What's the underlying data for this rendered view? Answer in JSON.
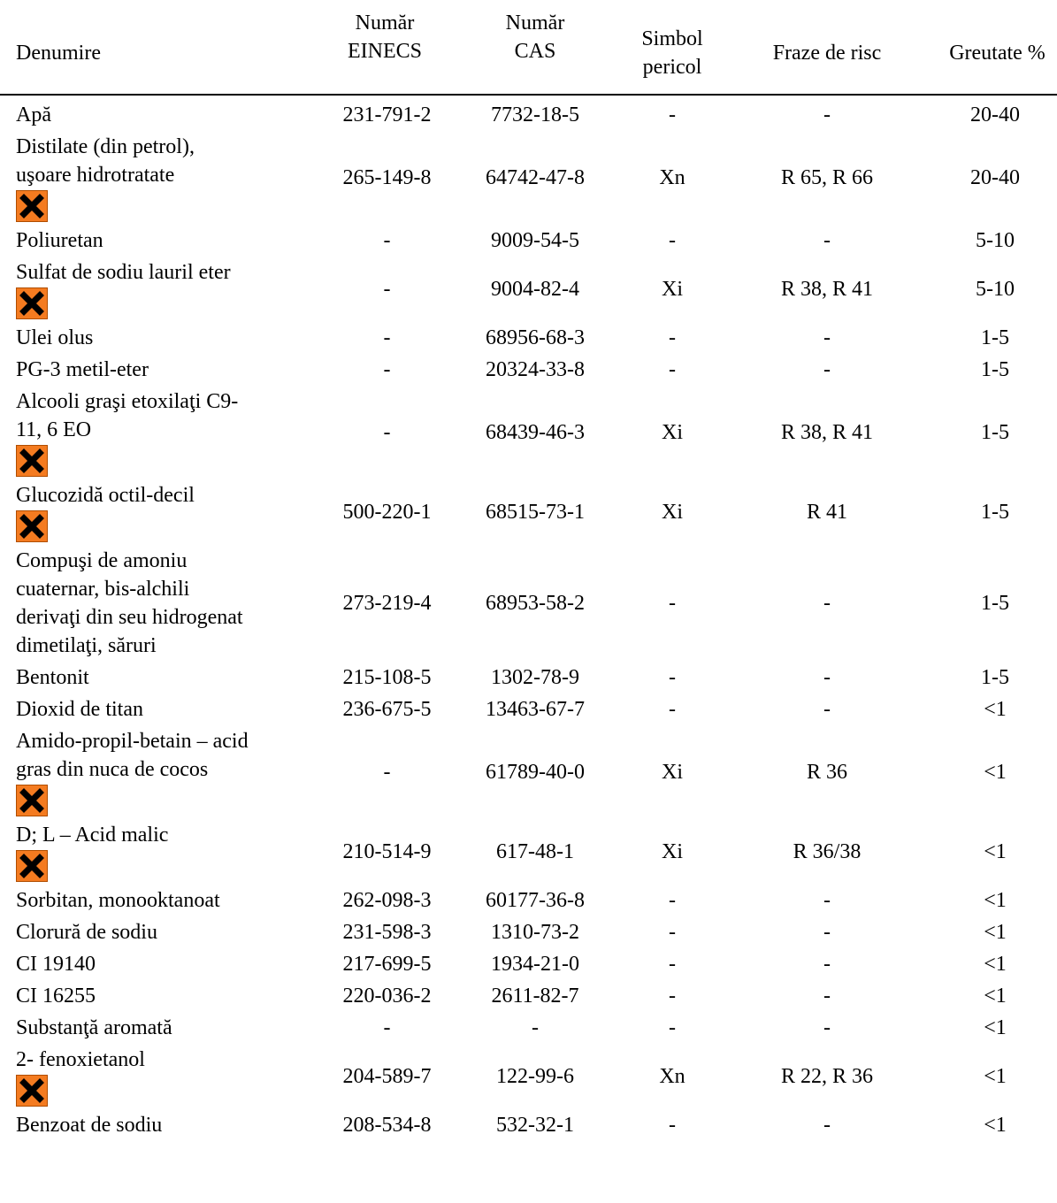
{
  "headers": {
    "denumire": "Denumire",
    "einecs": [
      "Număr",
      "EINECS"
    ],
    "cas": [
      "Număr",
      "CAS"
    ],
    "simbol": [
      "Simbol",
      "pericol"
    ],
    "fraze": "Fraze de risc",
    "greutate": "Greutate %"
  },
  "rows": [
    {
      "name": [
        "Apă"
      ],
      "einecs": "231-791-2",
      "cas": "7732-18-5",
      "simbol": "-",
      "fraze": "-",
      "greutate": "20-40",
      "hazard": false
    },
    {
      "name": [
        "Distilate (din petrol),",
        "uşoare hidrotratate"
      ],
      "einecs": "265-149-8",
      "cas": "64742-47-8",
      "simbol": "Xn",
      "fraze": "R 65, R 66",
      "greutate": "20-40",
      "hazard": true
    },
    {
      "name": [
        "Poliuretan"
      ],
      "einecs": "-",
      "cas": "9009-54-5",
      "simbol": "-",
      "fraze": "-",
      "greutate": "5-10",
      "hazard": false
    },
    {
      "name": [
        "Sulfat de sodiu lauril eter"
      ],
      "einecs": "-",
      "cas": "9004-82-4",
      "simbol": "Xi",
      "fraze": "R 38, R 41",
      "greutate": "5-10",
      "hazard": true
    },
    {
      "name": [
        "Ulei olus"
      ],
      "einecs": "-",
      "cas": "68956-68-3",
      "simbol": "-",
      "fraze": "-",
      "greutate": "1-5",
      "hazard": false
    },
    {
      "name": [
        "PG-3 metil-eter"
      ],
      "einecs": "-",
      "cas": "20324-33-8",
      "simbol": "-",
      "fraze": "-",
      "greutate": "1-5",
      "hazard": false
    },
    {
      "name": [
        "Alcooli graşi etoxilaţi C9-",
        "11, 6 EO"
      ],
      "einecs": "-",
      "cas": "68439-46-3",
      "simbol": "Xi",
      "fraze": "R 38, R 41",
      "greutate": "1-5",
      "hazard": true
    },
    {
      "name": [
        "Glucozidă octil-decil"
      ],
      "einecs": "500-220-1",
      "cas": "68515-73-1",
      "simbol": "Xi",
      "fraze": "R 41",
      "greutate": "1-5",
      "hazard": true
    },
    {
      "name": [
        "Compuşi de amoniu",
        "cuaternar, bis-alchili",
        "derivaţi din seu hidrogenat",
        "dimetilaţi, săruri"
      ],
      "einecs": "273-219-4",
      "cas": "68953-58-2",
      "simbol": "-",
      "fraze": "-",
      "greutate": "1-5",
      "hazard": false
    },
    {
      "name": [
        "Bentonit"
      ],
      "einecs": "215-108-5",
      "cas": "1302-78-9",
      "simbol": "-",
      "fraze": "-",
      "greutate": "1-5",
      "hazard": false
    },
    {
      "name": [
        "Dioxid de titan"
      ],
      "einecs": "236-675-5",
      "cas": "13463-67-7",
      "simbol": "-",
      "fraze": "-",
      "greutate": "<1",
      "hazard": false
    },
    {
      "name": [
        "Amido-propil-betain – acid",
        "gras din nuca de cocos"
      ],
      "einecs": "-",
      "cas": "61789-40-0",
      "simbol": "Xi",
      "fraze": "R 36",
      "greutate": "<1",
      "hazard": true
    },
    {
      "name": [
        "D; L – Acid malic"
      ],
      "einecs": "210-514-9",
      "cas": "617-48-1",
      "simbol": "Xi",
      "fraze": "R 36/38",
      "greutate": "<1",
      "hazard": true
    },
    {
      "name": [
        "Sorbitan, monooktanoat"
      ],
      "einecs": "262-098-3",
      "cas": "60177-36-8",
      "simbol": "-",
      "fraze": "-",
      "greutate": "<1",
      "hazard": false
    },
    {
      "name": [
        "Clorură de sodiu"
      ],
      "einecs": "231-598-3",
      "cas": "1310-73-2",
      "simbol": "-",
      "fraze": "-",
      "greutate": "<1",
      "hazard": false
    },
    {
      "name": [
        "CI 19140"
      ],
      "einecs": "217-699-5",
      "cas": "1934-21-0",
      "simbol": "-",
      "fraze": "-",
      "greutate": "<1",
      "hazard": false
    },
    {
      "name": [
        "CI 16255"
      ],
      "einecs": "220-036-2",
      "cas": "2611-82-7",
      "simbol": "-",
      "fraze": "-",
      "greutate": "<1",
      "hazard": false
    },
    {
      "name": [
        "Substanţă aromată"
      ],
      "einecs": "-",
      "cas": "-",
      "simbol": "-",
      "fraze": "-",
      "greutate": "<1",
      "hazard": false
    },
    {
      "name": [
        "2- fenoxietanol"
      ],
      "einecs": "204-589-7",
      "cas": "122-99-6",
      "simbol": "Xn",
      "fraze": "R 22, R 36",
      "greutate": "<1",
      "hazard": true
    },
    {
      "name": [
        "Benzoat de sodiu"
      ],
      "einecs": "208-534-8",
      "cas": "532-32-1",
      "simbol": "-",
      "fraze": "-",
      "greutate": "<1",
      "hazard": false
    }
  ],
  "colors": {
    "hazard_orange": "#f47b20",
    "text": "#000000"
  },
  "icons": {
    "hazard": "harmful-irritant-x-icon"
  }
}
